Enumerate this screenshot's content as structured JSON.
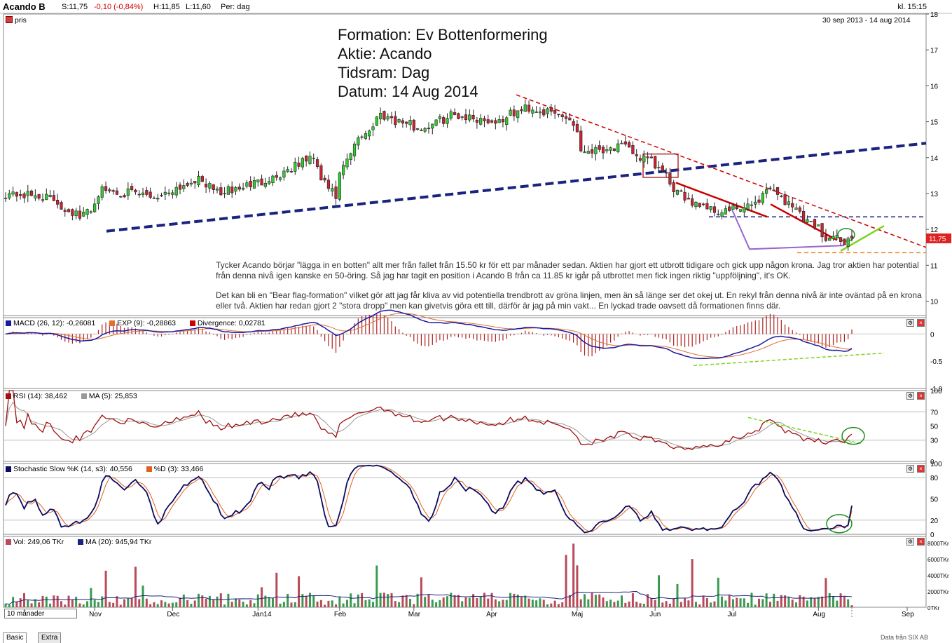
{
  "header": {
    "ticker": "Acando B",
    "last": "S:11,75",
    "change": "-0,10 (-0,84%)",
    "high": "H:11,85",
    "low": "L:11,60",
    "period": "Per: dag",
    "time": "kl. 15:15"
  },
  "price_pane": {
    "label": "pris",
    "range": "30 sep 2013 - 14 aug 2014",
    "last_tag": "11,75"
  },
  "annotation": {
    "line1": "Formation: Ev Bottenformering",
    "line2": "Aktie: Acando",
    "line3": "Tidsram: Dag",
    "line4": "Datum: 14 Aug 2014"
  },
  "note": {
    "para1": "Tycker Acando börjar \"lägga in en botten\" allt mer från fallet från 15.50 kr för ett par månader sedan. Aktien har gjort ett utbrott tidigare och gick upp någon krona. Jag tror aktien har potential från denna nivå igen kanske en 50-öring. Så jag har tagit en position i Acando B från ca 11.85 kr igår på utbrottet men fick ingen riktig \"uppföljning\", it's OK.",
    "para2": "Det kan bli en \"Bear flag-formation\" vilket gör att jag får kliva av vid potentiella trendbrott  av gröna linjen, men än så länge ser det okej ut. En rekyl från denna nivå är inte oväntad på en krona eller två. Aktien har redan gjort 2 \"stora dropp\" men kan givetvis göra ett till, därför är jag på min vakt... En lyckad trade oavsett då formationen finns där."
  },
  "macd_pane": {
    "macd": "MACD (26, 12): -0,26081",
    "exp": "EXP (9): -0,28863",
    "div": "Divergence: 0,02781"
  },
  "rsi_pane": {
    "rsi": "RSI (14): 38,462",
    "ma": "MA (5): 25,853"
  },
  "stoch_pane": {
    "k": "Stochastic Slow %K (14, s3): 40,556",
    "d": "%D (3): 33,466"
  },
  "vol_pane": {
    "vol": "Vol: 249,06 TKr",
    "ma": "MA (20): 945,94 TKr"
  },
  "period_button": "10 månader",
  "tabs": [
    "Basic",
    "Extra"
  ],
  "footer": "Data från SIX AB",
  "colors": {
    "up": "#33cc33",
    "down": "#cc2233",
    "trend_blue": "#1a237e",
    "resistance_red": "#cc0000",
    "macd": "#1a1aa0",
    "rsi": "#a01010",
    "stoch_k": "#0b0b60",
    "stoch_d": "#e06020",
    "volume_up": "#3a9a50",
    "volume_down": "#b94a5a"
  },
  "chart_data": [
    {
      "type": "candlestick",
      "title": "pris",
      "x_ticks": [
        "Nov",
        "Dec",
        "Jan14",
        "Feb",
        "Mar",
        "Apr",
        "Maj",
        "Jun",
        "Jul",
        "Aug",
        "Sep"
      ],
      "y_ticks": [
        10,
        11,
        12,
        13,
        14,
        15,
        16,
        17,
        18
      ],
      "ylim": [
        9.6,
        18
      ],
      "close_keypoints": [
        {
          "date": "2013-09-30",
          "close": 13.0
        },
        {
          "date": "2013-10-15",
          "close": 12.9
        },
        {
          "date": "2013-10-28",
          "close": 12.3
        },
        {
          "date": "2013-11-05",
          "close": 13.1
        },
        {
          "date": "2013-11-25",
          "close": 12.9
        },
        {
          "date": "2013-12-10",
          "close": 13.4
        },
        {
          "date": "2013-12-20",
          "close": 13.0
        },
        {
          "date": "2014-01-10",
          "close": 13.5
        },
        {
          "date": "2014-01-22",
          "close": 14.0
        },
        {
          "date": "2014-01-31",
          "close": 12.9
        },
        {
          "date": "2014-02-07",
          "close": 14.3
        },
        {
          "date": "2014-02-18",
          "close": 15.2
        },
        {
          "date": "2014-03-05",
          "close": 14.8
        },
        {
          "date": "2014-03-17",
          "close": 15.2
        },
        {
          "date": "2014-04-02",
          "close": 15.0
        },
        {
          "date": "2014-04-14",
          "close": 15.4
        },
        {
          "date": "2014-04-30",
          "close": 15.1
        },
        {
          "date": "2014-05-05",
          "close": 14.2
        },
        {
          "date": "2014-05-20",
          "close": 14.3
        },
        {
          "date": "2014-06-03",
          "close": 13.7
        },
        {
          "date": "2014-06-09",
          "close": 13.0
        },
        {
          "date": "2014-06-25",
          "close": 12.5
        },
        {
          "date": "2014-07-07",
          "close": 12.6
        },
        {
          "date": "2014-07-14",
          "close": 13.2
        },
        {
          "date": "2014-07-25",
          "close": 12.5
        },
        {
          "date": "2014-08-05",
          "close": 11.8
        },
        {
          "date": "2014-08-11",
          "close": 11.65
        },
        {
          "date": "2014-08-14",
          "close": 11.75
        }
      ],
      "annotations": [
        "Formation: Ev Bottenformering",
        "Aktie: Acando",
        "Tidsram: Dag",
        "Datum: 14 Aug 2014"
      ]
    },
    {
      "type": "line",
      "title": "MACD (26, 12)",
      "y_ticks": [
        0,
        -0.5,
        -1.0
      ],
      "ylim": [
        -1.0,
        0.3
      ],
      "series": [
        {
          "name": "MACD (26, 12)",
          "last": -0.26081
        },
        {
          "name": "EXP (9)",
          "last": -0.28863
        },
        {
          "name": "Divergence",
          "last": 0.02781
        }
      ]
    },
    {
      "type": "line",
      "title": "RSI (14)",
      "y_ticks": [
        0,
        30,
        50,
        70,
        100
      ],
      "ylim": [
        0,
        100
      ],
      "series": [
        {
          "name": "RSI (14)",
          "last": 38.462
        },
        {
          "name": "MA (5)",
          "last": 25.853
        }
      ]
    },
    {
      "type": "line",
      "title": "Stochastic Slow %K (14, s3)",
      "y_ticks": [
        0,
        20,
        50,
        80,
        100
      ],
      "ylim": [
        0,
        100
      ],
      "series": [
        {
          "name": "Stochastic Slow %K (14, s3)",
          "last": 40.556
        },
        {
          "name": "%D (3)",
          "last": 33.466
        }
      ]
    },
    {
      "type": "bar",
      "title": "Vol",
      "y_ticks": [
        "0TKr",
        "2000TKr",
        "4000TKr",
        "6000TKr",
        "8000TKr"
      ],
      "ylim": [
        0,
        8000
      ],
      "series": [
        {
          "name": "Vol",
          "last": 249.06
        },
        {
          "name": "MA (20)",
          "last": 945.94
        }
      ]
    }
  ]
}
